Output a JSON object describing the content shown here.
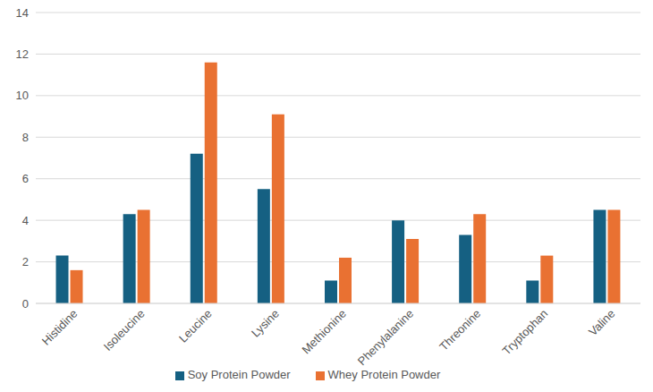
{
  "chart_data": {
    "type": "bar",
    "categories": [
      "Histidine",
      "Isoleucine",
      "Leucine",
      "Lysine",
      "Methionine",
      "Phenylalanine",
      "Threonine",
      "Tryptophan",
      "Valine"
    ],
    "series": [
      {
        "name": "Soy Protein Powder",
        "color": "#156082",
        "values": [
          2.3,
          4.3,
          7.2,
          5.5,
          1.1,
          4.0,
          3.3,
          1.1,
          4.5
        ]
      },
      {
        "name": "Whey Protein Powder",
        "color": "#e97132",
        "values": [
          1.6,
          4.5,
          11.6,
          9.1,
          2.2,
          3.1,
          4.3,
          2.3,
          4.5
        ]
      }
    ],
    "ylim": [
      0,
      14
    ],
    "yticks": [
      0,
      2,
      4,
      6,
      8,
      10,
      12,
      14
    ],
    "grid": true,
    "legend": "bottom"
  }
}
